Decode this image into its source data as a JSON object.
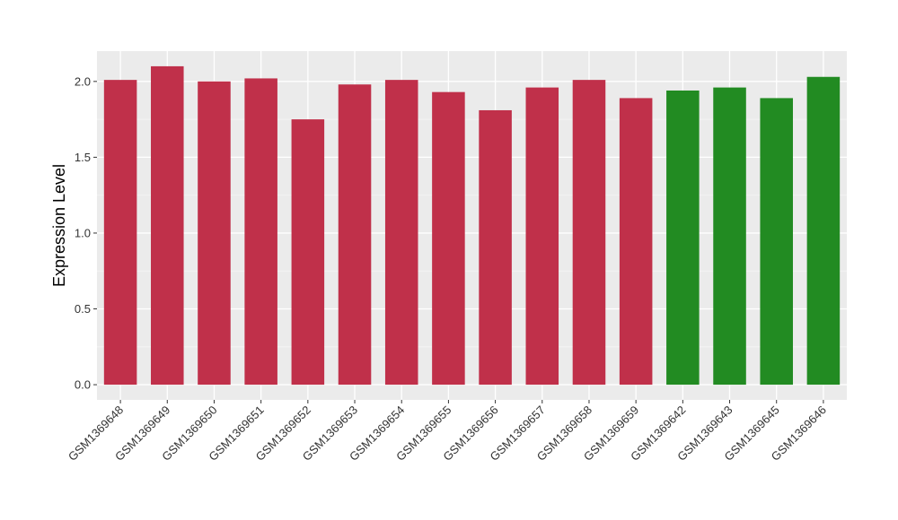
{
  "chart_data": {
    "type": "bar",
    "title": "",
    "xlabel": "",
    "ylabel": "Expression Level",
    "ylim": [
      -0.1,
      2.2
    ],
    "y_ticks": [
      0.0,
      0.5,
      1.0,
      1.5,
      2.0
    ],
    "y_tick_labels": [
      "0.0",
      "0.5",
      "1.0",
      "1.5",
      "2.0"
    ],
    "grid": true,
    "legend": "none",
    "background": "#ebebeb",
    "categories": [
      "GSM1369648",
      "GSM1369649",
      "GSM1369650",
      "GSM1369651",
      "GSM1369652",
      "GSM1369653",
      "GSM1369654",
      "GSM1369655",
      "GSM1369656",
      "GSM1369657",
      "GSM1369658",
      "GSM1369659",
      "GSM1369642",
      "GSM1369643",
      "GSM1369645",
      "GSM1369646"
    ],
    "values": [
      2.01,
      2.1,
      2.0,
      2.02,
      1.75,
      1.98,
      2.01,
      1.93,
      1.81,
      1.96,
      2.01,
      1.89,
      1.94,
      1.96,
      1.89,
      2.03
    ],
    "colors": [
      "#c0304a",
      "#c0304a",
      "#c0304a",
      "#c0304a",
      "#c0304a",
      "#c0304a",
      "#c0304a",
      "#c0304a",
      "#c0304a",
      "#c0304a",
      "#c0304a",
      "#c0304a",
      "#228b22",
      "#228b22",
      "#228b22",
      "#228b22"
    ]
  }
}
